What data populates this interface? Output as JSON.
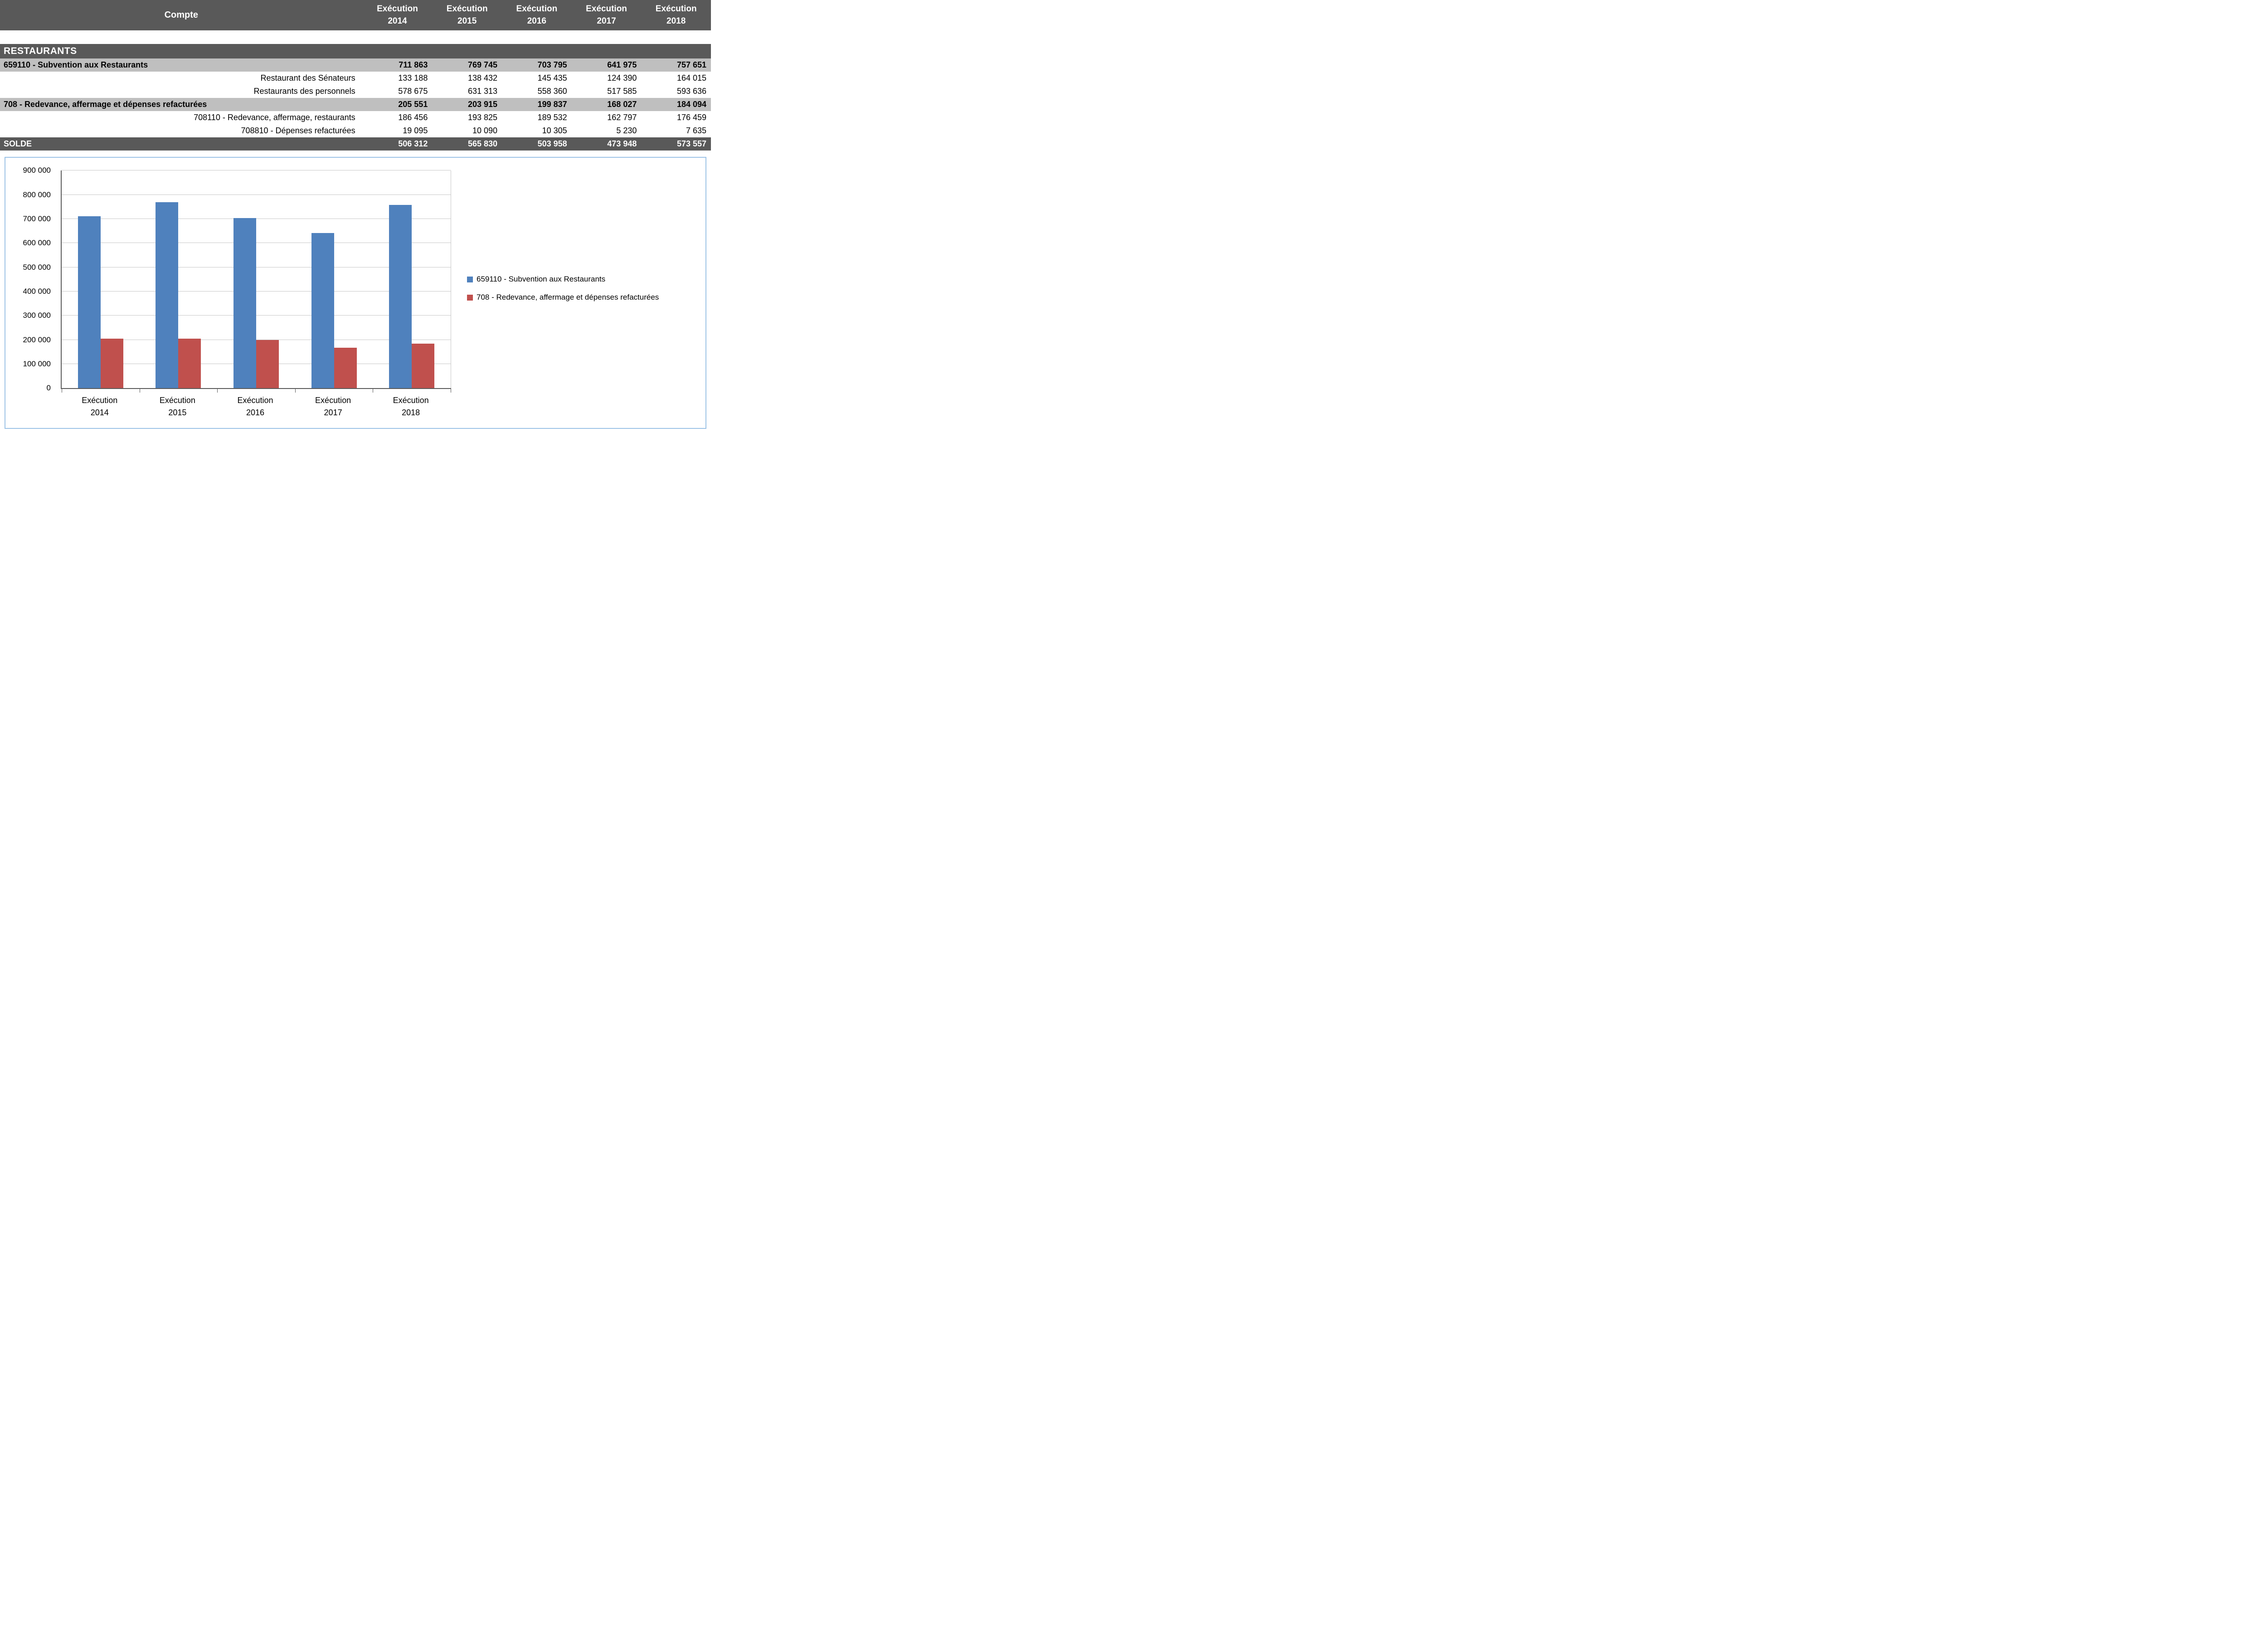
{
  "table": {
    "corner_label": "Compte",
    "columns": [
      {
        "line1": "Exécution",
        "line2": "2014"
      },
      {
        "line1": "Exécution",
        "line2": "2015"
      },
      {
        "line1": "Exécution",
        "line2": "2016"
      },
      {
        "line1": "Exécution",
        "line2": "2017"
      },
      {
        "line1": "Exécution",
        "line2": "2018"
      }
    ],
    "section_title": "RESTAURANTS",
    "rows": [
      {
        "label": "659110 - Subvention aux Restaurants",
        "values": [
          "711 863",
          "769 745",
          "703 795",
          "641 975",
          "757 651"
        ]
      },
      {
        "label": "Restaurant des Sénateurs",
        "values": [
          "133 188",
          "138 432",
          "145 435",
          "124 390",
          "164 015"
        ]
      },
      {
        "label": "Restaurants des personnels",
        "values": [
          "578 675",
          "631 313",
          "558 360",
          "517 585",
          "593 636"
        ]
      },
      {
        "label": "708 - Redevance, affermage et dépenses refacturées",
        "values": [
          "205 551",
          "203 915",
          "199 837",
          "168 027",
          "184 094"
        ]
      },
      {
        "label": "708110 - Redevance, affermage, restaurants",
        "values": [
          "186 456",
          "193 825",
          "189 532",
          "162 797",
          "176 459"
        ]
      },
      {
        "label": "708810 - Dépenses refacturées",
        "values": [
          "19 095",
          "10 090",
          "10 305",
          "5 230",
          "7 635"
        ]
      },
      {
        "label": "SOLDE",
        "values": [
          "506 312",
          "565 830",
          "503 958",
          "473 948",
          "573 557"
        ]
      }
    ]
  },
  "chart_data": {
    "type": "bar",
    "categories": [
      "Exécution 2014",
      "Exécution 2015",
      "Exécution 2016",
      "Exécution 2017",
      "Exécution 2018"
    ],
    "series": [
      {
        "name": "659110 - Subvention aux Restaurants",
        "color": "#4F81BD",
        "values": [
          711863,
          769745,
          703795,
          641975,
          757651
        ]
      },
      {
        "name": "708 - Redevance, affermage et dépenses refacturées",
        "color": "#C0504D",
        "values": [
          205551,
          203915,
          199837,
          168027,
          184094
        ]
      }
    ],
    "ylim": [
      0,
      900000
    ],
    "ytick_step": 100000,
    "grid": true,
    "legend_position": "right"
  },
  "colors": {
    "header_bg": "#595959",
    "group_row_bg": "#BFBFBF",
    "total_row_bg": "#595959",
    "chart_border": "#9DC3E6",
    "gridline": "#C8C8C8",
    "axis": "#595959"
  }
}
